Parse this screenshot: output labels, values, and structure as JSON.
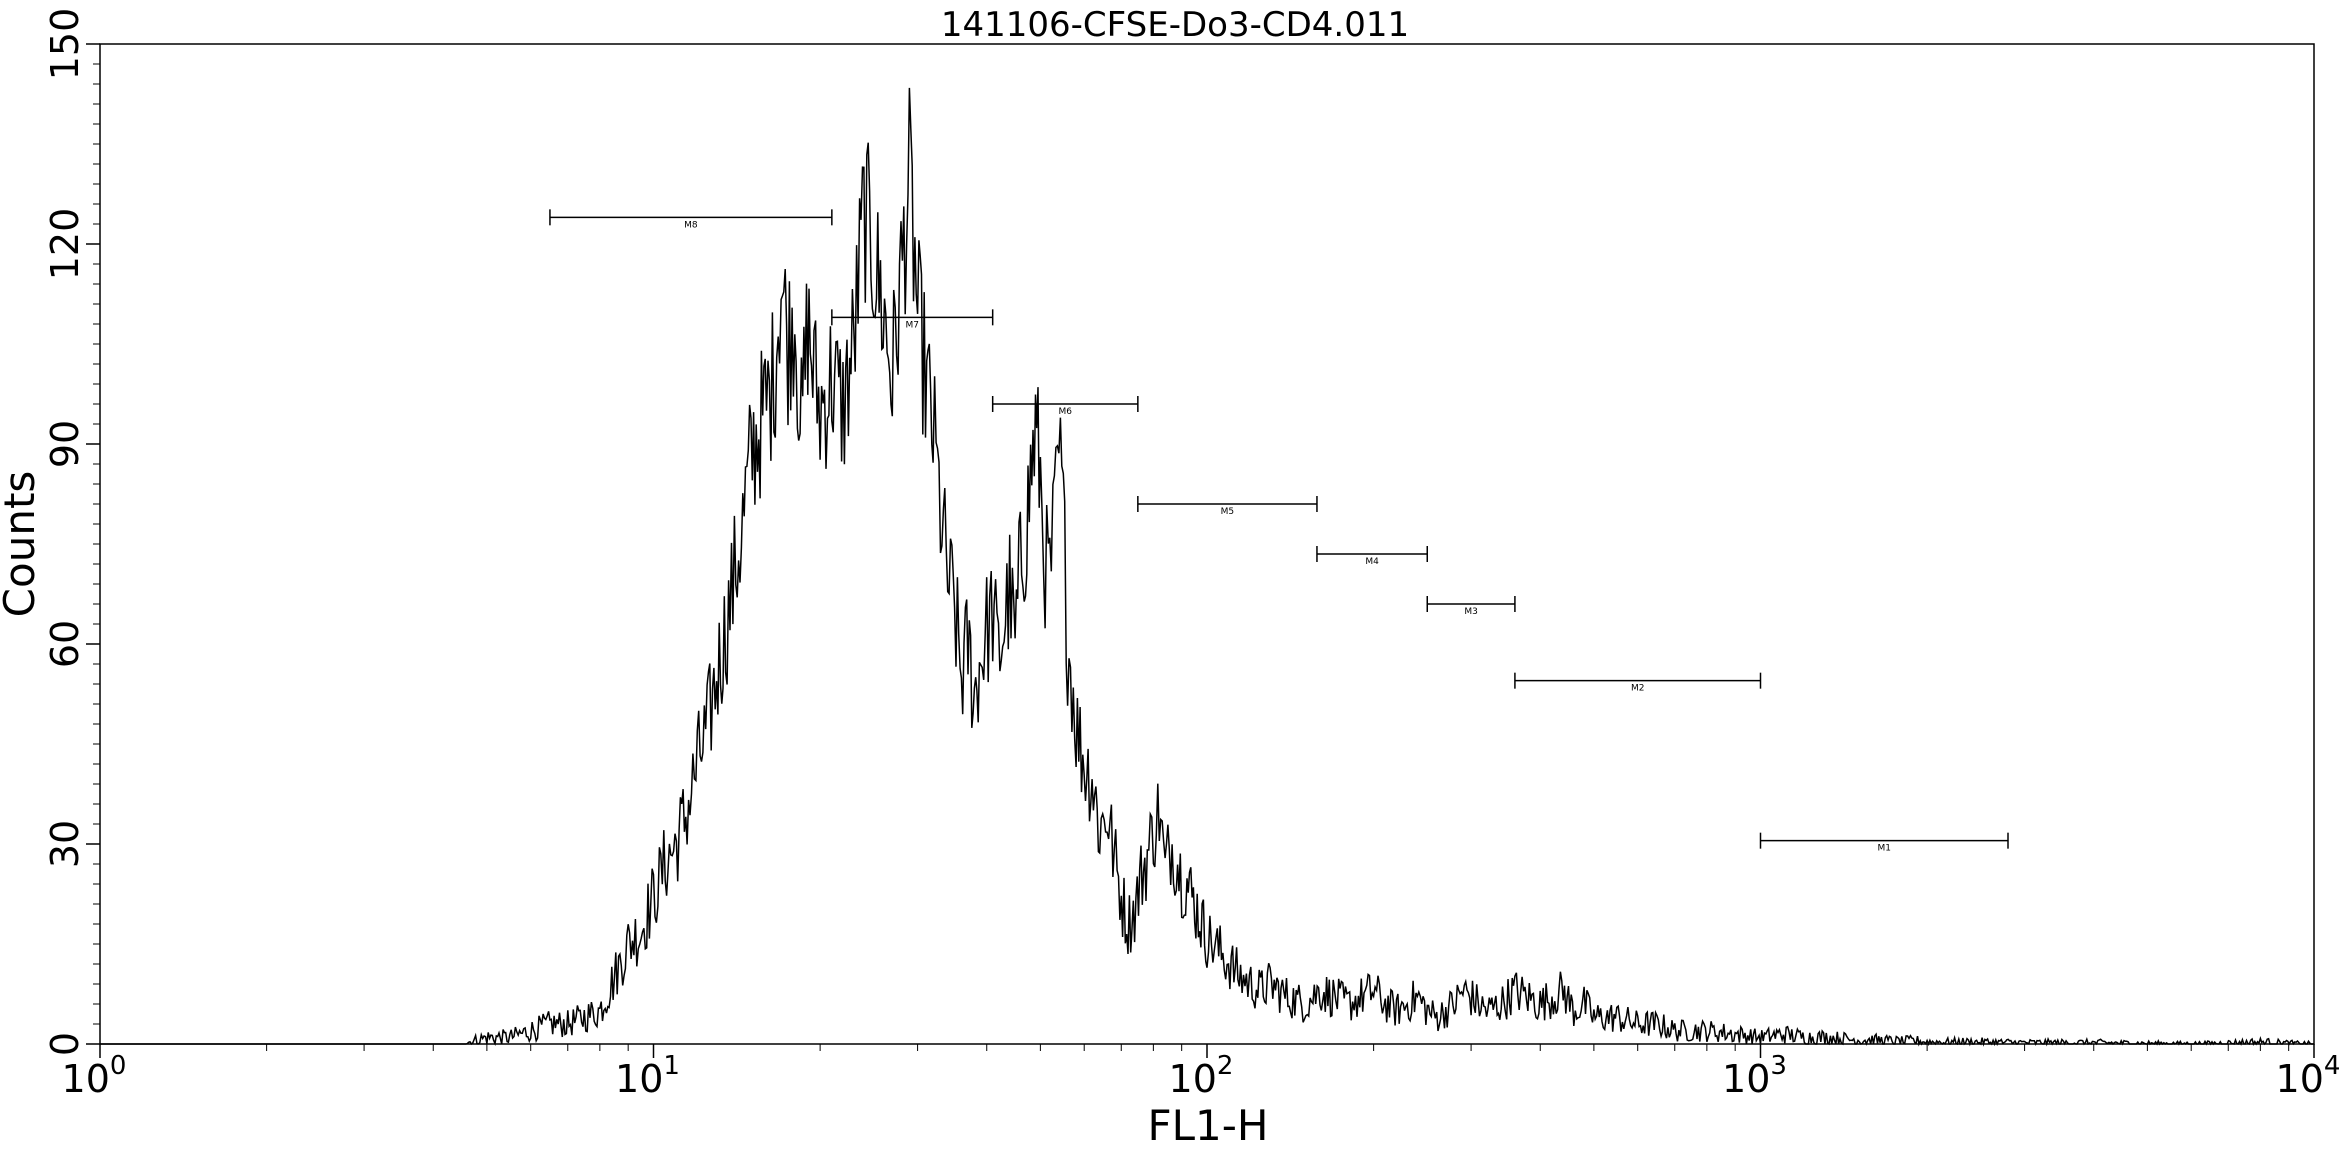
{
  "chart_data": {
    "type": "line",
    "title": "141106-CFSE-Do3-CD4.011",
    "xlabel": "FL1-H",
    "ylabel": "Counts",
    "x_scale": "log",
    "xlim": [
      1,
      10000
    ],
    "ylim": [
      0,
      150
    ],
    "grid": false,
    "x_ticks": [
      {
        "value": 1,
        "base": "10",
        "exp": "0"
      },
      {
        "value": 10,
        "base": "10",
        "exp": "1"
      },
      {
        "value": 100,
        "base": "10",
        "exp": "2"
      },
      {
        "value": 1000,
        "base": "10",
        "exp": "3"
      },
      {
        "value": 10000,
        "base": "10",
        "exp": "4"
      }
    ],
    "y_ticks": [
      {
        "value": 0,
        "label": "0"
      },
      {
        "value": 30,
        "label": "30"
      },
      {
        "value": 60,
        "label": "60"
      },
      {
        "value": 90,
        "label": "90"
      },
      {
        "value": 120,
        "label": "120"
      },
      {
        "value": 150,
        "label": "150"
      }
    ],
    "series": [
      {
        "x": [
          1,
          4,
          4.5,
          5,
          5.5,
          6,
          6.5,
          7,
          7.5,
          8,
          8.5,
          9,
          9.5,
          10,
          10.5,
          11,
          11.5,
          12,
          12.5,
          13,
          13.5,
          14,
          14.5,
          15,
          15.5,
          16,
          16.5,
          17,
          17.5,
          18,
          18.5,
          19,
          19.5,
          20,
          21,
          22,
          23,
          24,
          25,
          26,
          27,
          28,
          29,
          30,
          31,
          32,
          33,
          34,
          35,
          36,
          37,
          38,
          39,
          40,
          41,
          42,
          43,
          44,
          45,
          46,
          47,
          48,
          49,
          50,
          51,
          52,
          53,
          54,
          55,
          56,
          57,
          58,
          60,
          62,
          64,
          66,
          68,
          70,
          72,
          74,
          76,
          78,
          80,
          82,
          84,
          86,
          88,
          90,
          92,
          94,
          96,
          98,
          100,
          105,
          110,
          115,
          120,
          125,
          130,
          140,
          150,
          160,
          170,
          180,
          190,
          200,
          210,
          220,
          230,
          240,
          250,
          260,
          270,
          280,
          290,
          300,
          320,
          340,
          360,
          380,
          400,
          420,
          440,
          460,
          480,
          500,
          550,
          600,
          650,
          700,
          750,
          800,
          900,
          1000,
          1100,
          1200,
          1300,
          1400,
          1500,
          1600,
          1700,
          1800,
          1900,
          2000,
          2500,
          3000,
          4000,
          5000,
          6000,
          8000,
          10000
        ],
        "y": [
          0,
          0,
          0,
          1,
          1,
          2,
          3,
          3,
          4,
          5,
          10,
          15,
          17,
          22,
          27,
          30,
          35,
          42,
          47,
          55,
          62,
          70,
          78,
          88,
          92,
          96,
          100,
          115,
          105,
          110,
          92,
          108,
          100,
          95,
          100,
          95,
          105,
          125,
          118,
          110,
          100,
          115,
          130,
          110,
          100,
          92,
          80,
          70,
          65,
          55,
          60,
          52,
          58,
          62,
          65,
          58,
          63,
          68,
          60,
          72,
          76,
          85,
          92,
          85,
          72,
          70,
          78,
          88,
          80,
          60,
          55,
          48,
          42,
          40,
          32,
          35,
          28,
          22,
          18,
          20,
          25,
          28,
          32,
          35,
          26,
          30,
          28,
          25,
          24,
          22,
          20,
          18,
          16,
          14,
          12,
          10,
          9,
          8,
          9,
          7,
          6,
          8,
          7,
          6,
          7,
          8,
          6,
          5,
          6,
          7,
          5,
          4,
          5,
          6,
          8,
          7,
          5,
          6,
          8,
          7,
          6,
          7,
          8,
          5,
          6,
          4,
          4,
          3,
          3,
          2,
          2,
          2,
          1.5,
          1,
          1.5,
          1,
          1,
          0.8,
          0.6,
          0.6,
          0.5,
          0.4,
          0.5,
          0.3,
          0.3,
          0.2,
          0.2,
          0.1,
          0,
          0.3,
          0
        ]
      }
    ],
    "markers": [
      {
        "label": "M8",
        "x1": 6.5,
        "x2": 21,
        "y": 124
      },
      {
        "label": "M7",
        "x1": 21,
        "x2": 41,
        "y": 109
      },
      {
        "label": "M6",
        "x1": 41,
        "x2": 75,
        "y": 96
      },
      {
        "label": "M5",
        "x1": 75,
        "x2": 158,
        "y": 81
      },
      {
        "label": "M4",
        "x1": 158,
        "x2": 250,
        "y": 73.5
      },
      {
        "label": "M3",
        "x1": 250,
        "x2": 360,
        "y": 66
      },
      {
        "label": "M2",
        "x1": 360,
        "x2": 1000,
        "y": 54.5
      },
      {
        "label": "M1",
        "x1": 1000,
        "x2": 2800,
        "y": 30.5
      }
    ]
  }
}
